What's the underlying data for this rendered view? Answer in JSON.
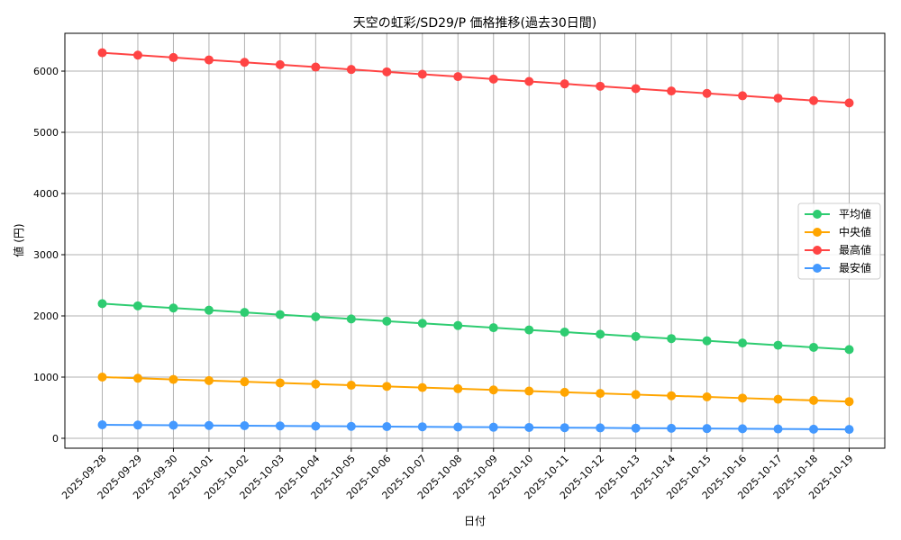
{
  "chart_data": {
    "type": "line",
    "title": "天空の虹彩/SD29/P 価格推移(過去30日間)",
    "xlabel": "日付",
    "ylabel": "値 (円)",
    "categories": [
      "2025-09-28",
      "2025-09-29",
      "2025-09-30",
      "2025-10-01",
      "2025-10-02",
      "2025-10-03",
      "2025-10-04",
      "2025-10-05",
      "2025-10-06",
      "2025-10-07",
      "2025-10-08",
      "2025-10-09",
      "2025-10-10",
      "2025-10-11",
      "2025-10-12",
      "2025-10-13",
      "2025-10-14",
      "2025-10-15",
      "2025-10-16",
      "2025-10-17",
      "2025-10-18",
      "2025-10-19"
    ],
    "yticks": [
      0,
      1000,
      2000,
      3000,
      4000,
      5000,
      6000
    ],
    "ylim": [
      -162,
      6618
    ],
    "grid": true,
    "legend_position": "center right",
    "series": [
      {
        "name": "平均値",
        "color": "#2ecc71",
        "values": [
          2200,
          2164,
          2129,
          2093,
          2057,
          2021,
          1986,
          1950,
          1914,
          1879,
          1843,
          1807,
          1771,
          1736,
          1700,
          1664,
          1629,
          1593,
          1557,
          1521,
          1486,
          1450
        ]
      },
      {
        "name": "中央値",
        "color": "#ffa500",
        "values": [
          1000,
          981,
          962,
          943,
          924,
          905,
          886,
          867,
          848,
          829,
          810,
          790,
          771,
          752,
          733,
          714,
          695,
          676,
          657,
          638,
          619,
          600
        ]
      },
      {
        "name": "最高値",
        "color": "#ff4444",
        "values": [
          6300,
          6261,
          6222,
          6183,
          6144,
          6105,
          6066,
          6027,
          5988,
          5949,
          5910,
          5870,
          5831,
          5792,
          5753,
          5714,
          5675,
          5636,
          5597,
          5558,
          5519,
          5480
        ]
      },
      {
        "name": "最安値",
        "color": "#4499ff",
        "values": [
          220,
          216,
          213,
          209,
          206,
          202,
          199,
          195,
          191,
          188,
          184,
          181,
          177,
          173,
          170,
          166,
          163,
          159,
          156,
          152,
          149,
          145
        ]
      }
    ]
  }
}
